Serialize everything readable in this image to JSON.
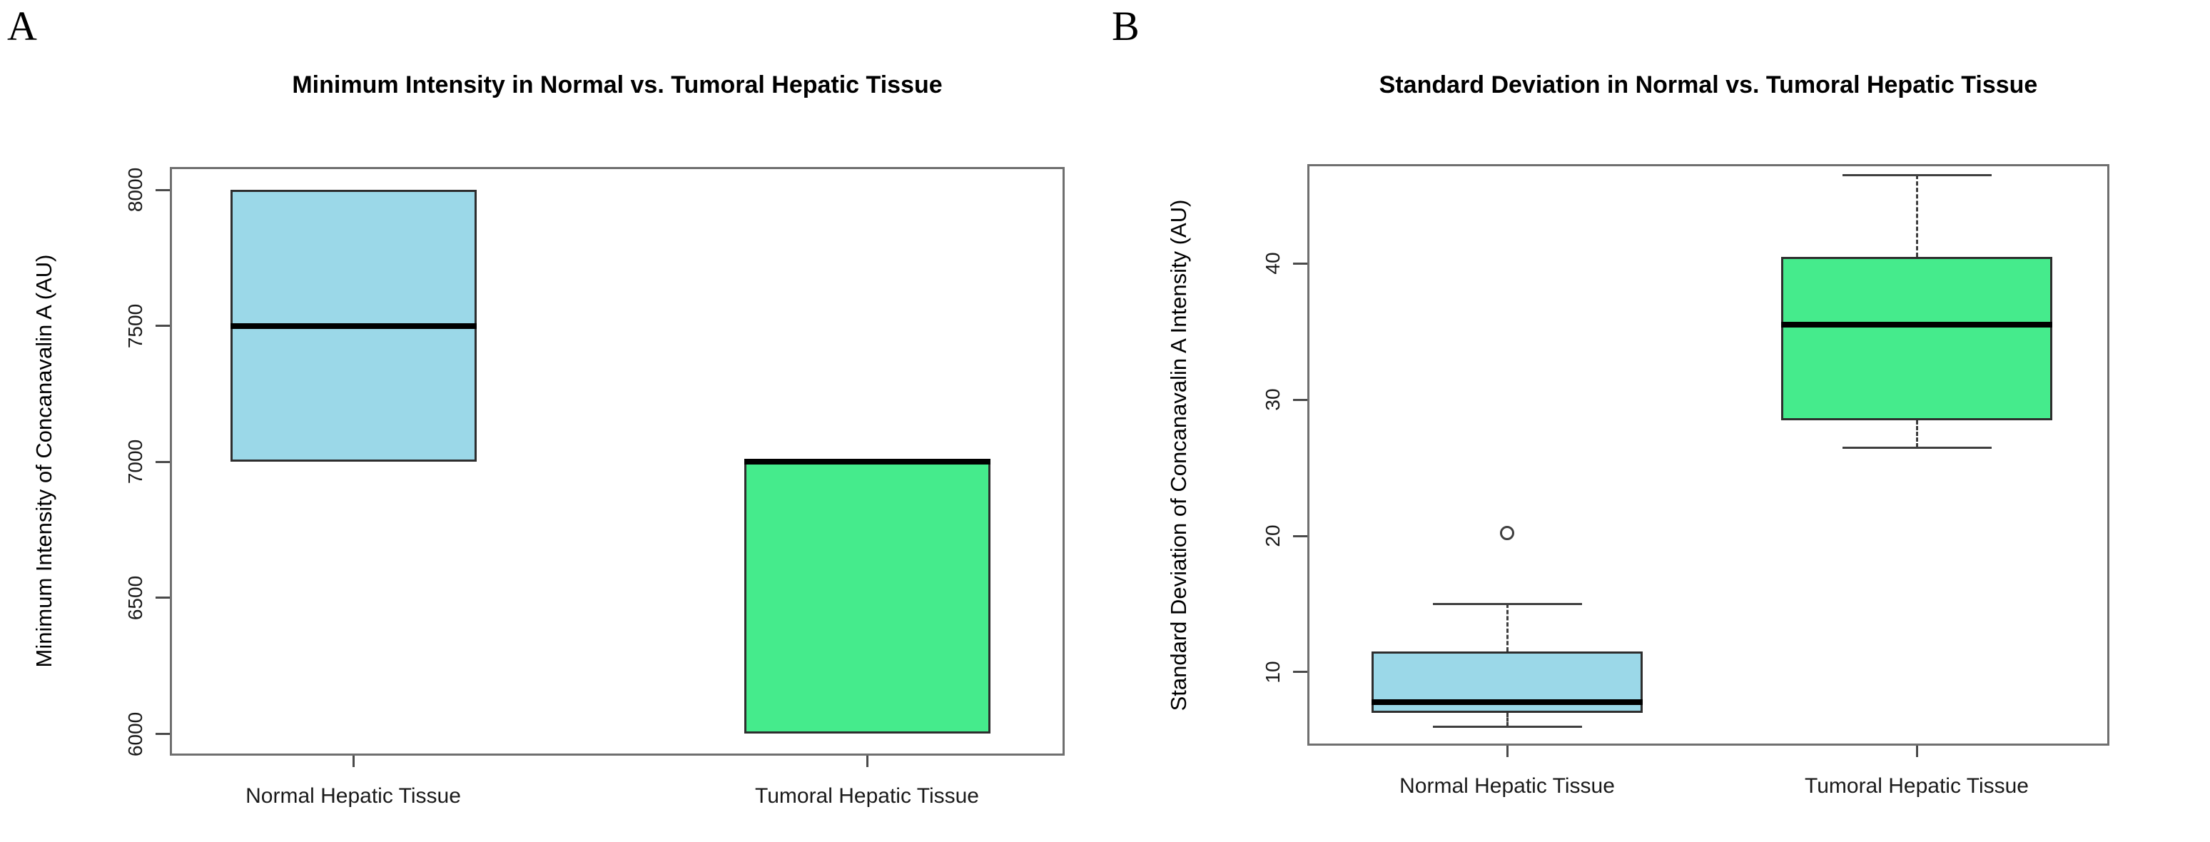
{
  "figure": {
    "corner_labels": [
      "A",
      "B"
    ]
  },
  "chart_data": [
    {
      "type": "boxplot",
      "title": "Minimum Intensity in Normal vs. Tumoral Hepatic Tissue",
      "ylabel": "Minimum Intensity of Concanavalin A  (AU)",
      "categories": [
        "Normal Hepatic Tissue",
        "Tumoral Hepatic Tissue"
      ],
      "yticks": [
        6000,
        6500,
        7000,
        7500,
        8000
      ],
      "ylim": [
        5920,
        8085
      ],
      "grid": false,
      "legend": "none",
      "series": [
        {
          "name": "Normal Hepatic Tissue",
          "whisker_low": 7000,
          "q1": 7000,
          "median": 7500,
          "q3": 8000,
          "whisker_high": 8000,
          "outliers": [],
          "fill": "#9BD8E8"
        },
        {
          "name": "Tumoral Hepatic Tissue",
          "whisker_low": 6000,
          "q1": 6000,
          "median": 7000,
          "q3": 7000,
          "whisker_high": 7000,
          "outliers": [],
          "fill": "#45EB8C"
        }
      ]
    },
    {
      "type": "boxplot",
      "title": "Standard Deviation in Normal vs. Tumoral Hepatic Tissue",
      "ylabel": "Standard Deviation of Concanavalin A Intensity (AU)",
      "categories": [
        "Normal Hepatic Tissue",
        "Tumoral Hepatic Tissue"
      ],
      "yticks": [
        10,
        20,
        30,
        40
      ],
      "ylim": [
        4.6,
        47.3
      ],
      "grid": false,
      "legend": "none",
      "series": [
        {
          "name": "Normal Hepatic Tissue",
          "whisker_low": 6,
          "q1": 7,
          "median": 7.8,
          "q3": 11.5,
          "whisker_high": 15,
          "outliers": [
            20.2
          ],
          "fill": "#9BD8E8"
        },
        {
          "name": "Tumoral Hepatic Tissue",
          "whisker_low": 26.5,
          "q1": 28.5,
          "median": 35.5,
          "q3": 40.5,
          "whisker_high": 46.5,
          "outliers": [],
          "fill": "#45EB8C"
        }
      ]
    }
  ]
}
